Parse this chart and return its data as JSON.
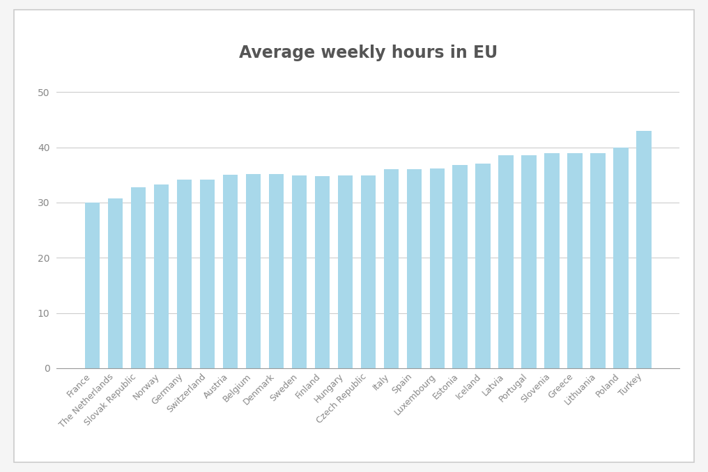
{
  "title": "Average weekly hours in EU",
  "categories": [
    "France",
    "The Netherlands",
    "Slovak Republic",
    "Norway",
    "Germany",
    "Switzerland",
    "Austria",
    "Belgium",
    "Denmark",
    "Sweden",
    "Finland",
    "Hungary",
    "Czech Republic",
    "Italy",
    "Spain",
    "Luxembourg",
    "Estonia",
    "Iceland",
    "Latvia",
    "Portugal",
    "Slovenia",
    "Greece",
    "Lithuania",
    "Poland",
    "Turkey"
  ],
  "values": [
    30.0,
    30.7,
    32.7,
    33.3,
    34.1,
    34.2,
    35.0,
    35.1,
    35.2,
    34.9,
    34.8,
    34.9,
    34.9,
    36.1,
    36.1,
    36.2,
    36.8,
    37.0,
    38.5,
    38.6,
    39.0,
    39.0,
    39.0,
    40.0,
    43.0
  ],
  "bar_color": "#a8d8ea",
  "background_color": "#ffffff",
  "figure_background": "#f5f5f5",
  "grid_color": "#cccccc",
  "text_color": "#888888",
  "title_color": "#555555",
  "border_color": "#cccccc",
  "ylim": [
    0,
    53
  ],
  "yticks": [
    0,
    10,
    20,
    30,
    40,
    50
  ],
  "title_fontsize": 17,
  "tick_fontsize": 10,
  "label_fontsize": 9,
  "bar_width": 0.65
}
